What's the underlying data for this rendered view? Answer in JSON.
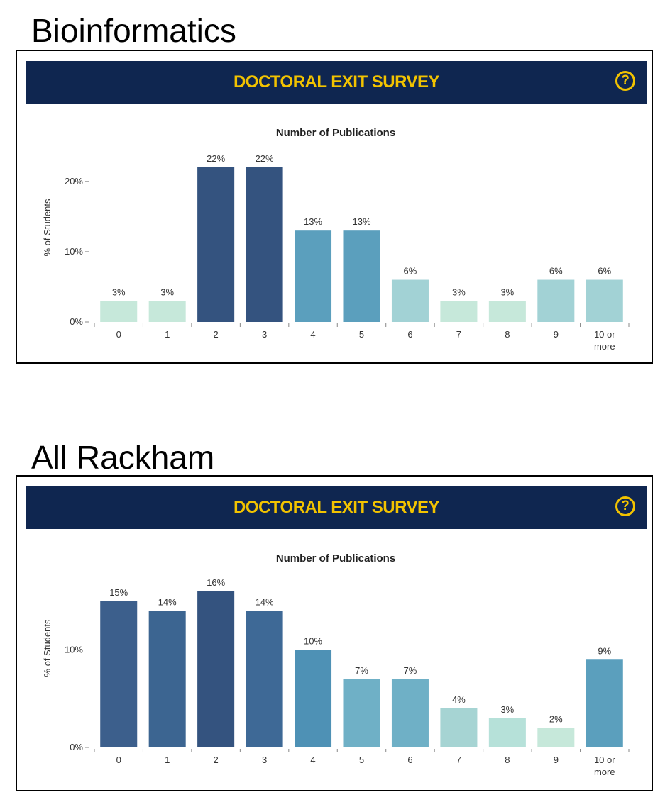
{
  "sections": [
    {
      "label": "Bioinformatics",
      "banner_title": "DOCTORAL EXIT SURVEY",
      "help_label": "?",
      "chart_data": {
        "type": "bar",
        "title": "Number of Publications",
        "xlabel": "",
        "ylabel": "% of Students",
        "categories": [
          "0",
          "1",
          "2",
          "3",
          "4",
          "5",
          "6",
          "7",
          "8",
          "9",
          "10 or more"
        ],
        "values": [
          3,
          3,
          22,
          22,
          13,
          13,
          6,
          3,
          3,
          6,
          6
        ],
        "value_labels": [
          "3%",
          "3%",
          "22%",
          "22%",
          "13%",
          "13%",
          "6%",
          "3%",
          "3%",
          "6%",
          "6%"
        ],
        "colors": [
          "#c6e8da",
          "#c6e8da",
          "#34537f",
          "#34537f",
          "#5b9fbd",
          "#5b9fbd",
          "#a2d2d5",
          "#c6e8da",
          "#c6e8da",
          "#a2d2d5",
          "#a2d2d5"
        ],
        "yticks": [
          0,
          10,
          20
        ],
        "ytick_labels": [
          "0%",
          "10%",
          "20%"
        ],
        "ylim": [
          0,
          22
        ],
        "grid": false
      }
    },
    {
      "label": "All Rackham",
      "banner_title": "DOCTORAL EXIT SURVEY",
      "help_label": "?",
      "chart_data": {
        "type": "bar",
        "title": "Number of Publications",
        "xlabel": "",
        "ylabel": "% of Students",
        "categories": [
          "0",
          "1",
          "2",
          "3",
          "4",
          "5",
          "6",
          "7",
          "8",
          "9",
          "10 or more"
        ],
        "values": [
          15,
          14,
          16,
          14,
          10,
          7,
          7,
          4,
          3,
          2,
          9
        ],
        "value_labels": [
          "15%",
          "14%",
          "16%",
          "14%",
          "10%",
          "7%",
          "7%",
          "4%",
          "3%",
          "2%",
          "9%"
        ],
        "colors": [
          "#3c5f8c",
          "#3c6591",
          "#34537f",
          "#3e6996",
          "#4e91b5",
          "#6fb0c6",
          "#6fb0c6",
          "#a6d4d3",
          "#b6e1d9",
          "#c6e8da",
          "#5b9fbd"
        ],
        "yticks": [
          0,
          10
        ],
        "ytick_labels": [
          "0%",
          "10%"
        ],
        "ylim": [
          0,
          16
        ],
        "grid": false
      }
    }
  ]
}
